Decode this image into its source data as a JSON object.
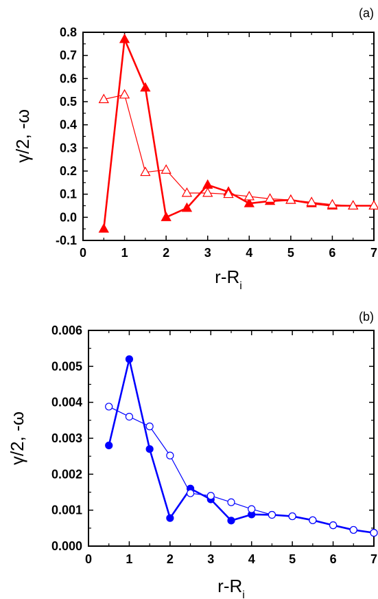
{
  "chart_data": [
    {
      "type": "line",
      "panel_label": "(a)",
      "xlabel": "r-R",
      "xlabel_sub": "i",
      "ylabel": "γ/2, -ω",
      "xlim": [
        0,
        7
      ],
      "ylim": [
        -0.1,
        0.8
      ],
      "x_ticks": [
        0,
        1,
        2,
        3,
        4,
        5,
        6,
        7
      ],
      "y_ticks": [
        -0.1,
        0.0,
        0.1,
        0.2,
        0.3,
        0.4,
        0.5,
        0.6,
        0.7,
        0.8
      ],
      "y_tick_labels": [
        "-0.1",
        "0.0",
        "0.1",
        "0.2",
        "0.3",
        "0.4",
        "0.5",
        "0.6",
        "0.7",
        "0.8"
      ],
      "x_tick_labels": [
        "0",
        "1",
        "2",
        "3",
        "4",
        "5",
        "6",
        "7"
      ],
      "grid": false,
      "color": "#ff0000",
      "series": [
        {
          "marker": "filled-triangle",
          "x": [
            0.5,
            1.0,
            1.5,
            2.0,
            2.5,
            3.0,
            3.5,
            4.0,
            4.5,
            5.0,
            5.5,
            6.0,
            6.5,
            7.0
          ],
          "y": [
            -0.05,
            0.77,
            0.56,
            0.0,
            0.04,
            0.14,
            0.11,
            0.06,
            0.07,
            0.075,
            0.06,
            0.05,
            0.05,
            0.05
          ]
        },
        {
          "marker": "open-triangle",
          "x": [
            0.5,
            1.0,
            1.5,
            2.0,
            2.5,
            3.0,
            3.5,
            4.0,
            4.5,
            5.0,
            5.5,
            6.0,
            6.5,
            7.0
          ],
          "y": [
            0.51,
            0.53,
            0.195,
            0.205,
            0.105,
            0.105,
            0.1,
            0.09,
            0.08,
            0.075,
            0.065,
            0.055,
            0.05,
            0.05
          ]
        }
      ]
    },
    {
      "type": "line",
      "panel_label": "(b)",
      "xlabel": "r-R",
      "xlabel_sub": "i",
      "ylabel": "γ/2, -ω",
      "xlim": [
        0,
        7
      ],
      "ylim": [
        0,
        0.006
      ],
      "x_ticks": [
        0,
        1,
        2,
        3,
        4,
        5,
        6,
        7
      ],
      "y_ticks": [
        0,
        0.001,
        0.002,
        0.003,
        0.004,
        0.005,
        0.006
      ],
      "y_tick_labels": [
        "0.000",
        "0.001",
        "0.002",
        "0.003",
        "0.004",
        "0.005",
        "0.006"
      ],
      "x_tick_labels": [
        "0",
        "1",
        "2",
        "3",
        "4",
        "5",
        "6",
        "7"
      ],
      "grid": false,
      "color": "#0000ff",
      "series": [
        {
          "marker": "filled-circle",
          "x": [
            0.5,
            1.0,
            1.5,
            2.0,
            2.5,
            3.0,
            3.5,
            4.0,
            4.5,
            5.0,
            5.5,
            6.0,
            6.5,
            7.0
          ],
          "y": [
            0.0028,
            0.0052,
            0.0027,
            0.00078,
            0.0016,
            0.0013,
            0.00071,
            0.00088,
            0.00087,
            0.00083,
            0.00072,
            0.00058,
            0.00045,
            0.00037
          ]
        },
        {
          "marker": "open-circle",
          "x": [
            0.5,
            1.0,
            1.5,
            2.0,
            2.5,
            3.0,
            3.5,
            4.0,
            4.5,
            5.0,
            5.5,
            6.0,
            6.5,
            7.0
          ],
          "y": [
            0.00388,
            0.0036,
            0.00333,
            0.00252,
            0.00147,
            0.0014,
            0.00122,
            0.00103,
            0.00087,
            0.00083,
            0.00072,
            0.00058,
            0.00045,
            0.00037
          ]
        }
      ]
    }
  ]
}
